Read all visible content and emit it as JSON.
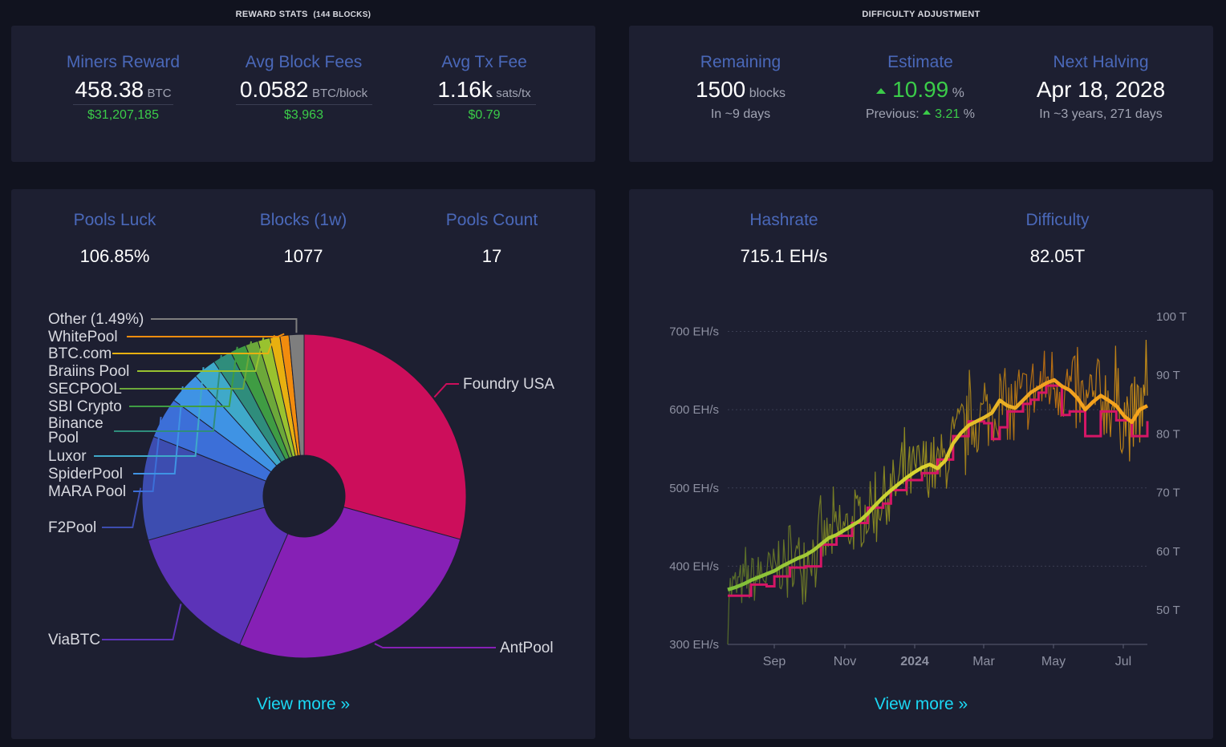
{
  "reward": {
    "title": "REWARD STATS",
    "title_suffix": "(144 BLOCKS)",
    "miners_reward": {
      "label": "Miners Reward",
      "value": "458.38",
      "unit": "BTC",
      "fiat": "$31,207,185"
    },
    "avg_block_fees": {
      "label": "Avg Block Fees",
      "value": "0.0582",
      "unit": "BTC/block",
      "fiat": "$3,963"
    },
    "avg_tx_fee": {
      "label": "Avg Tx Fee",
      "value": "1.16k",
      "unit": "sats/tx",
      "fiat": "$0.79"
    }
  },
  "difficulty": {
    "title": "DIFFICULTY ADJUSTMENT",
    "remaining": {
      "label": "Remaining",
      "value": "1500",
      "unit": "blocks",
      "sub": "In ~9 days"
    },
    "estimate": {
      "label": "Estimate",
      "value": "10.99",
      "unit": "%",
      "previous_label": "Previous:",
      "previous_value": "3.21",
      "previous_unit": "%"
    },
    "next_halving": {
      "label": "Next Halving",
      "value": "Apr 18, 2028",
      "sub": "In ~3 years, 271 days"
    }
  },
  "pools": {
    "luck": {
      "label": "Pools Luck",
      "value": "106.85%"
    },
    "blocks": {
      "label": "Blocks (1w)",
      "value": "1077"
    },
    "count": {
      "label": "Pools Count",
      "value": "17"
    },
    "view_more": "View more »"
  },
  "mining": {
    "hashrate": {
      "label": "Hashrate",
      "value": "715.1 EH/s"
    },
    "difficulty": {
      "label": "Difficulty",
      "value": "82.05T"
    },
    "view_more": "View more »"
  },
  "chart_data": [
    {
      "type": "pie",
      "title": "",
      "slices": [
        {
          "name": "Foundry USA",
          "value": 29.3,
          "color": "#cc0e5b"
        },
        {
          "name": "AntPool",
          "value": 27.2,
          "color": "#8620b5"
        },
        {
          "name": "ViaBTC",
          "value": 14.1,
          "color": "#5c33b8"
        },
        {
          "name": "F2Pool",
          "value": 10.4,
          "color": "#3d4db0"
        },
        {
          "name": "MARA Pool",
          "value": 4.1,
          "color": "#3c6fd8"
        },
        {
          "name": "SpiderPool",
          "value": 3.2,
          "color": "#3f93e4"
        },
        {
          "name": "Luxor",
          "value": 2.3,
          "color": "#3fa9c9"
        },
        {
          "name": "Binance Pool",
          "value": 1.9,
          "color": "#2f8d7c"
        },
        {
          "name": "SBI Crypto",
          "value": 1.6,
          "color": "#3f9c43"
        },
        {
          "name": "SECPOOL",
          "value": 1.3,
          "color": "#6ca83a"
        },
        {
          "name": "Braiins Pool",
          "value": 1.2,
          "color": "#99c22f"
        },
        {
          "name": "BTC.com",
          "value": 1.0,
          "color": "#e8b010"
        },
        {
          "name": "WhitePool",
          "value": 0.9,
          "color": "#f28c0e"
        },
        {
          "name": "Other (1.49%)",
          "value": 1.49,
          "color": "#7e7e7e"
        }
      ]
    },
    {
      "type": "line",
      "title": "",
      "x_ticks": [
        "Sep",
        "Nov",
        "2024",
        "Mar",
        "May",
        "Jul"
      ],
      "y_left_ticks": [
        "300 EH/s",
        "400 EH/s",
        "500 EH/s",
        "600 EH/s",
        "700 EH/s"
      ],
      "y_right_ticks": [
        "50 T",
        "60 T",
        "70 T",
        "80 T",
        "90 T",
        "100 T"
      ],
      "ylim_left": [
        300,
        720
      ],
      "ylim_right": [
        44,
        100
      ],
      "grid": true,
      "series": [
        {
          "label": "hashrate average",
          "axis": "left",
          "values": [
            370,
            373,
            377,
            382,
            386,
            390,
            394,
            400,
            405,
            410,
            414,
            420,
            428,
            436,
            440,
            446,
            452,
            458,
            467,
            478,
            488,
            497,
            505,
            513,
            520,
            526,
            530,
            525,
            535,
            557,
            570,
            580,
            585,
            590,
            596,
            612,
            605,
            602,
            612,
            622,
            628,
            634,
            638,
            630,
            625,
            615,
            600,
            610,
            618,
            612,
            605,
            592,
            584,
            600,
            605
          ]
        },
        {
          "label": "difficulty",
          "axis": "right",
          "values": [
            52.3,
            52.3,
            52.3,
            54.2,
            54.2,
            53.9,
            55.6,
            55.6,
            57.1,
            57.1,
            57.3,
            57.3,
            61.0,
            61.0,
            62.5,
            62.5,
            64.7,
            64.7,
            67.3,
            67.3,
            68.0,
            70.3,
            70.3,
            72.0,
            72.0,
            73.2,
            73.2,
            75.5,
            75.5,
            79.5,
            79.5,
            82.0,
            82.0,
            81.7,
            79.0,
            81.0,
            83.7,
            83.7,
            85.0,
            85.7,
            86.9,
            88.1,
            88.1,
            83.1,
            83.7,
            83.7,
            79.5,
            79.5,
            83.7,
            83.7,
            82.2,
            82.2,
            79.5,
            79.5,
            82.05
          ]
        }
      ]
    }
  ]
}
